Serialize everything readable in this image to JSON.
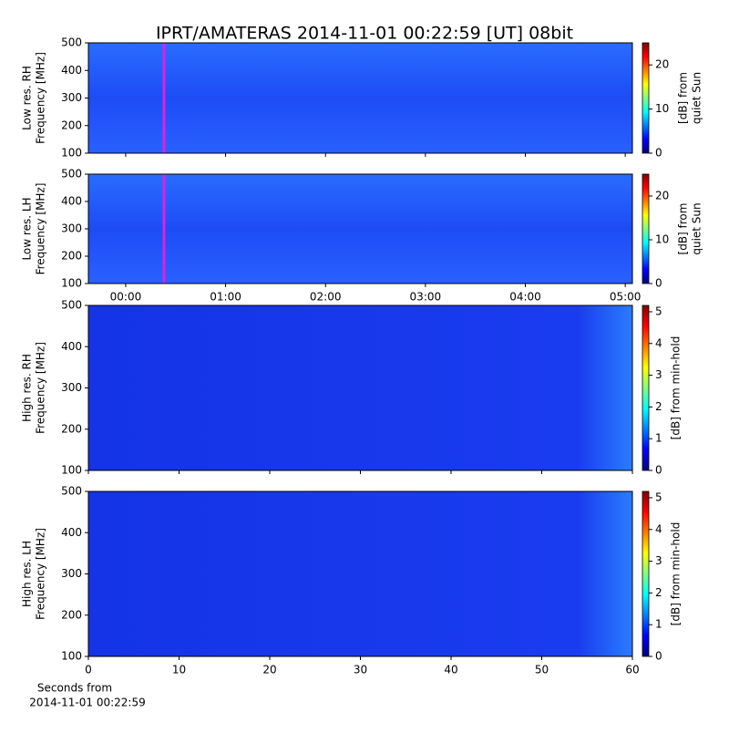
{
  "chart_data": [
    {
      "type": "spectrogram",
      "title": "IPRT/AMATERAS 2014-11-01 00:22:59 [UT]   08bit",
      "ylabel": [
        "Low res. RH",
        "Frequency [MHz]"
      ],
      "ylim": [
        100,
        500
      ],
      "yticks": [
        100,
        200,
        300,
        400,
        500
      ],
      "xlim": [
        -22.4,
        304.3
      ],
      "xticks": [
        0,
        60,
        120,
        180,
        240,
        300
      ],
      "show_xticklabels": false,
      "cursor_x": 23,
      "cursor_color": "#e020e0",
      "clabel": [
        "[dB] from",
        "quiet Sun"
      ],
      "clim": [
        0,
        25
      ],
      "cticks": [
        0,
        10,
        20
      ],
      "colormap": "jet"
    },
    {
      "type": "spectrogram",
      "ylabel": [
        "Low res. LH",
        "Frequency [MHz]"
      ],
      "ylim": [
        100,
        500
      ],
      "yticks": [
        100,
        200,
        300,
        400,
        500
      ],
      "xlim": [
        -22.4,
        304.3
      ],
      "xticks": [
        {
          "value": 0,
          "label": "00:00"
        },
        {
          "value": 60,
          "label": "01:00"
        },
        {
          "value": 120,
          "label": "02:00"
        },
        {
          "value": 180,
          "label": "03:00"
        },
        {
          "value": 240,
          "label": "04:00"
        },
        {
          "value": 300,
          "label": "05:00"
        }
      ],
      "show_xticklabels": true,
      "cursor_x": 23,
      "cursor_color": "#e020e0",
      "clabel": [
        "[dB] from",
        "quiet Sun"
      ],
      "clim": [
        0,
        25
      ],
      "cticks": [
        0,
        10,
        20
      ],
      "colormap": "jet"
    },
    {
      "type": "spectrogram",
      "ylabel": [
        "High res. RH",
        "Frequency [MHz]"
      ],
      "ylim": [
        100,
        500
      ],
      "yticks": [
        100,
        200,
        300,
        400,
        500
      ],
      "xlim": [
        0,
        60
      ],
      "xticks": [
        0,
        10,
        20,
        30,
        40,
        50,
        60
      ],
      "show_xticklabels": false,
      "clabel": [
        "[dB] from min-hold"
      ],
      "clim": [
        0,
        5.2
      ],
      "cticks": [
        0,
        1,
        2,
        3,
        4,
        5
      ],
      "colormap": "jet"
    },
    {
      "type": "spectrogram",
      "ylabel": [
        "High res. LH",
        "Frequency [MHz]"
      ],
      "ylim": [
        100,
        500
      ],
      "yticks": [
        100,
        200,
        300,
        400,
        500
      ],
      "xlim": [
        0,
        60
      ],
      "xticks": [
        0,
        10,
        20,
        30,
        40,
        50,
        60
      ],
      "show_xticklabels": true,
      "xlabel": [
        "Seconds from",
        "2014-11-01 00:22:59"
      ],
      "clabel": [
        "[dB] from min-hold"
      ],
      "clim": [
        0,
        5.2
      ],
      "cticks": [
        0,
        1,
        2,
        3,
        4,
        5
      ],
      "colormap": "jet"
    }
  ]
}
